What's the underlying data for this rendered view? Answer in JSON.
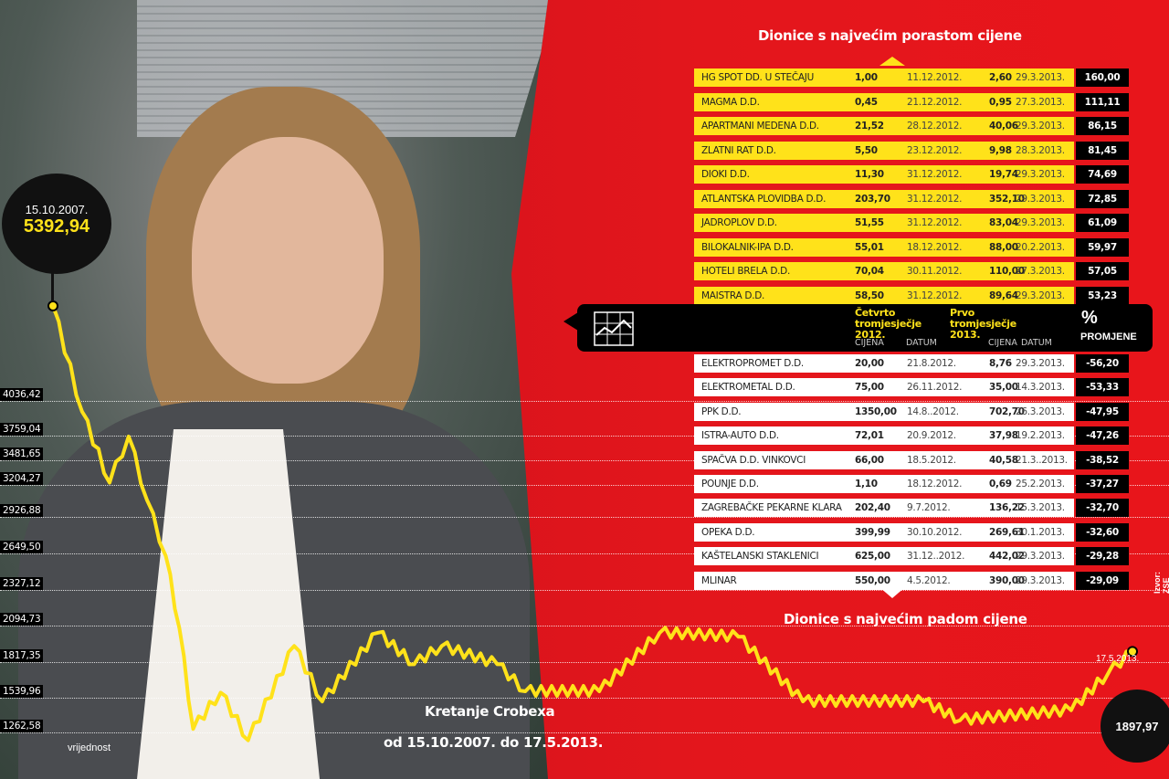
{
  "gainers": {
    "title": "Dionice s najvećim porastom cijene",
    "rows": [
      [
        "HG SPOT DD. U STEČAJU",
        "1,00",
        "11.12.2012.",
        "2,60",
        "29.3.2013.",
        "160,00"
      ],
      [
        "MAGMA D.D.",
        "0,45",
        "21.12.2012.",
        "0,95",
        "27.3.2013.",
        "111,11"
      ],
      [
        "APARTMANI MEDENA D.D.",
        "21,52",
        "28.12.2012.",
        "40,06",
        "29.3.2013.",
        "86,15"
      ],
      [
        "ZLATNI RAT D.D.",
        "5,50",
        "23.12.2012.",
        "9,98",
        "28.3.2013.",
        "81,45"
      ],
      [
        "DIOKI D.D.",
        "11,30",
        "31.12.2012.",
        "19,74",
        "29.3.2013.",
        "74,69"
      ],
      [
        "ATLANTSKA PLOVIDBA D.D.",
        "203,70",
        "31.12.2012.",
        "352,10",
        "29.3.2013.",
        "72,85"
      ],
      [
        "JADROPLOV D.D.",
        "51,55",
        "31.12.2012.",
        "83,04",
        "29.3.2013.",
        "61,09"
      ],
      [
        "BILOKALNIK-IPA D.D.",
        "55,01",
        "18.12.2012.",
        "88,00",
        "20.2.2013.",
        "59,97"
      ],
      [
        "HOTELI BRELA D.D.",
        "70,04",
        "30.11.2012.",
        "110,00",
        "27.3.2013.",
        "57,05"
      ],
      [
        "MAISTRA D.D.",
        "58,50",
        "31.12.2012.",
        "89,64",
        "29.3.2013.",
        "53,23"
      ]
    ]
  },
  "header": {
    "q4": "Četvrto tromjesječje 2012.",
    "q1": "Prvo tromjesječje 2013.",
    "price": "CIJENA",
    "date": "DATUM",
    "pct_symbol": "%",
    "pct_label": "PROMJENE",
    "icon": "line-chart-icon"
  },
  "losers": {
    "title": "Dionice s najvećim padom cijene",
    "rows": [
      [
        "ELEKTROPROMET D.D.",
        "20,00",
        "21.8.2012.",
        "8,76",
        "29.3.2013.",
        "-56,20"
      ],
      [
        "ELEKTROMETAL D.D.",
        "75,00",
        "26.11.2012.",
        "35,00",
        "14.3.2013.",
        "-53,33"
      ],
      [
        "PPK D.D.",
        "1350,00",
        "14.8..2012.",
        "702,70",
        "26.3.2013.",
        "-47,95"
      ],
      [
        "ISTRA-AUTO D.D.",
        "72,01",
        "20.9.2012.",
        "37,98",
        "19.2.2013.",
        "-47,26"
      ],
      [
        "SPAČVA D.D. VINKOVCI",
        "66,00",
        "18.5.2012.",
        "40,58",
        "21.3..2013.",
        "-38,52"
      ],
      [
        "POUNJE D.D.",
        "1,10",
        "18.12.2012.",
        "0,69",
        "25.2.2013.",
        "-37,27"
      ],
      [
        "ZAGREBAČKE PEKARNE KLARA",
        "202,40",
        "9.7.2012.",
        "136,22",
        "15.3.2013.",
        "-32,70"
      ],
      [
        "OPEKA D.D.",
        "399,99",
        "30.10.2012.",
        "269,61",
        "30.1.2013.",
        "-32,60"
      ],
      [
        "KAŠTELANSKI STAKLENICI",
        "625,00",
        "31.12..2012.",
        "442,02",
        "29.3.2013.",
        "-29,28"
      ],
      [
        "MLINAR",
        "550,00",
        "4.5.2012.",
        "390,00",
        "29.3.2013.",
        "-29,09"
      ]
    ]
  },
  "source": "Izvor: ZSE",
  "chart_data": {
    "type": "line",
    "title": "Kretanje Crobexa",
    "subtitle": "od 15.10.2007. do 17.5.2013.",
    "ylabel": "vrijednost",
    "yticks": [
      "4036,42",
      "3759,04",
      "3481,65",
      "3204,27",
      "2926,88",
      "2649,50",
      "2327,12",
      "2094,73",
      "1817,35",
      "1539,96",
      "1262,58"
    ],
    "start": {
      "date": "15.10.2007.",
      "value": "5392,94"
    },
    "end": {
      "date": "17.5.2013.",
      "value": "1897,97"
    },
    "line_color": "#ffe21a",
    "grid": true,
    "series": [
      [
        "2007-10-15",
        5392.94
      ],
      [
        "2007-12-09",
        3950
      ],
      [
        "2008-01-30",
        3230
      ],
      [
        "2008-03-06",
        3750
      ],
      [
        "2008-04-10",
        3070
      ],
      [
        "2008-05-15",
        2630
      ],
      [
        "2008-06-10",
        2075
      ],
      [
        "2008-07-06",
        1290
      ],
      [
        "2008-08-27",
        1580
      ],
      [
        "2008-10-18",
        1200
      ],
      [
        "2009-01-13",
        1940
      ],
      [
        "2009-03-07",
        1510
      ],
      [
        "2009-06-20",
        2040
      ],
      [
        "2009-08-28",
        1800
      ],
      [
        "2009-10-19",
        1940
      ],
      [
        "2010-02-01",
        1800
      ],
      [
        "2010-03-26",
        1590
      ],
      [
        "2010-08-13",
        1590
      ],
      [
        "2010-12-05",
        2040
      ],
      [
        "2011-05-03",
        2010
      ],
      [
        "2011-09-02",
        1510
      ],
      [
        "2012-04-17",
        1510
      ],
      [
        "2012-06-25",
        1360
      ],
      [
        "2013-01-21",
        1440
      ],
      [
        "2013-04-01",
        1730
      ],
      [
        "2013-05-17",
        1897.97
      ]
    ]
  }
}
